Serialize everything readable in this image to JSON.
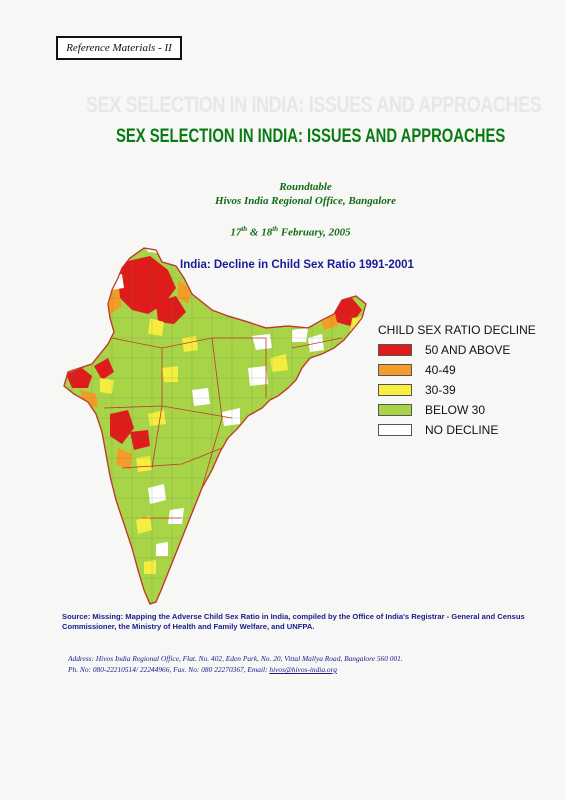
{
  "header": {
    "reference_label": "Reference Materials - II",
    "ghost_title": "SEX SELECTION IN INDIA: ISSUES AND APPROACHES",
    "title": "SEX SELECTION IN INDIA: ISSUES AND APPROACHES"
  },
  "event": {
    "name": "Roundtable",
    "venue": "Hivos India Regional Office, Bangalore",
    "date": "17th & 18th February, 2005"
  },
  "map": {
    "title": "India: Decline in Child Sex Ratio 1991-2001",
    "colors": {
      "fill_default": "#a8d448",
      "fill_high": "#e02020",
      "fill_mid": "#f2a020",
      "fill_low": "#f5ee40",
      "fill_none": "#ffffff",
      "state_border": "#c0392b",
      "district_border": "#6a7a40"
    }
  },
  "legend": {
    "title": "CHILD SEX RATIO DECLINE",
    "items": [
      {
        "label": "50 AND ABOVE",
        "color": "#e01b1b"
      },
      {
        "label": "40-49",
        "color": "#f39c2a"
      },
      {
        "label": "30-39",
        "color": "#f5ee40"
      },
      {
        "label": "BELOW 30",
        "color": "#a8d448"
      },
      {
        "label": "NO DECLINE",
        "color": "#ffffff"
      }
    ]
  },
  "footer": {
    "source": "Source: Missing: Mapping the Adverse Child Sex Ratio in India, compiled by the Office of India's Registrar - General and Census Commissioner, the Ministry of Health and Family Welfare, and UNFPA.",
    "address_line1": "Address: Hivos India Regional Office, Flat. No. 402, Eden Park, No. 20, Vittal Mallya Road, Bangalore 560 001.",
    "address_line2": "Ph. No: 080-22210514/ 22244966, Fax. No: 080 22270367, Email: ",
    "email": "hivos@hivos-india.org"
  }
}
